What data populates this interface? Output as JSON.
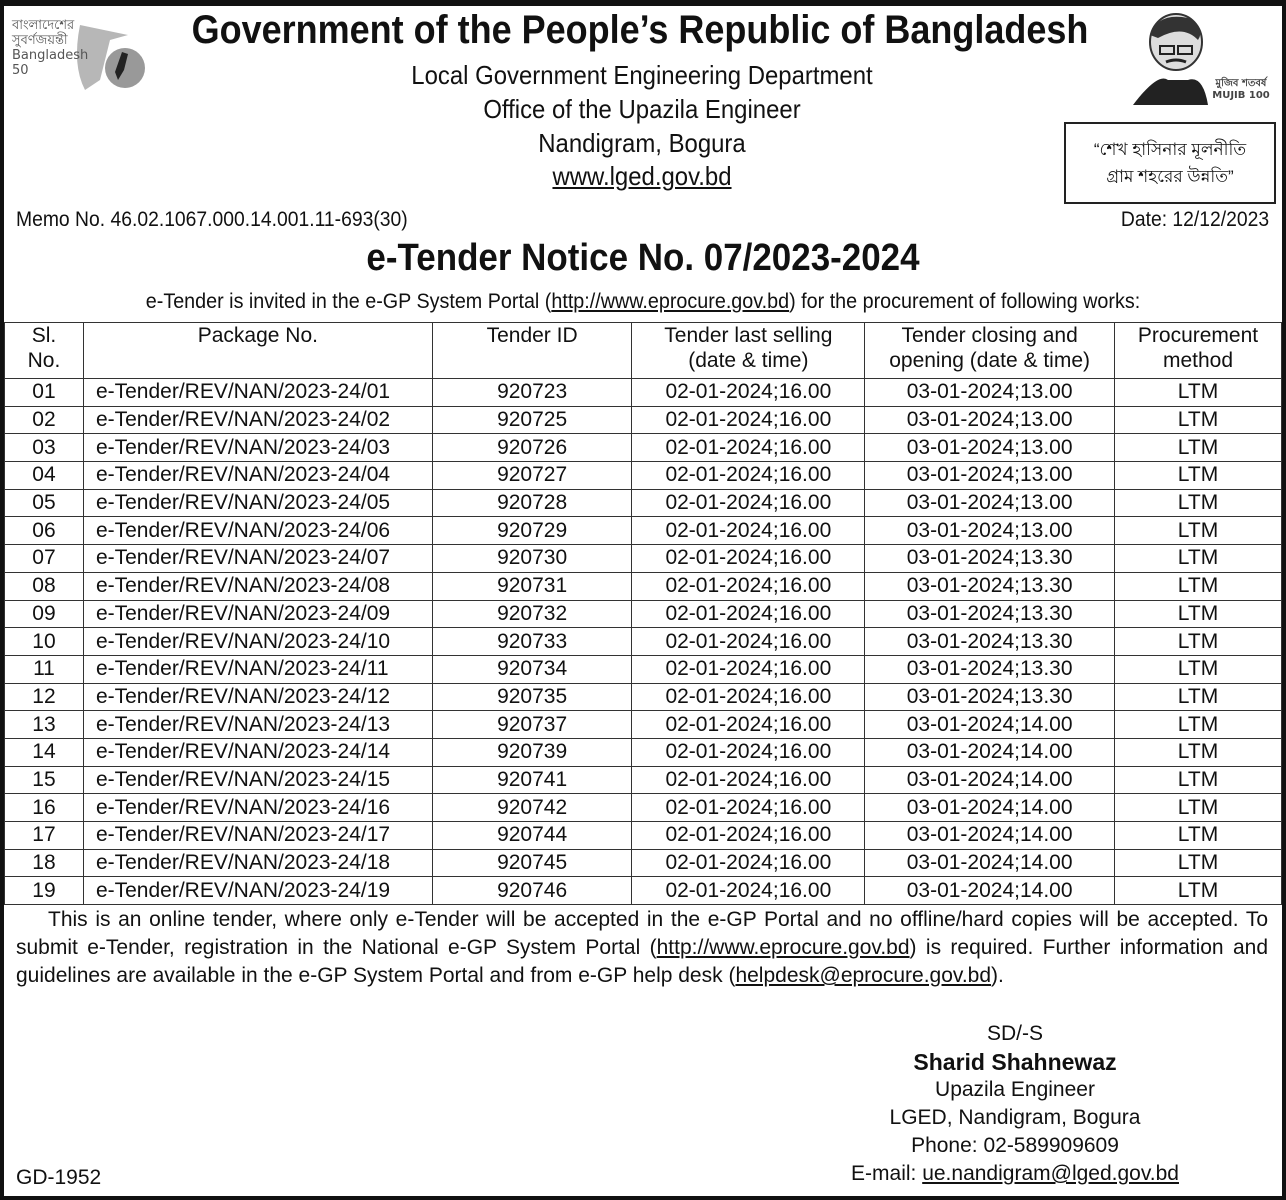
{
  "header": {
    "title": "Government of the People’s Republic of Bangladesh",
    "lines": [
      "Local Government Engineering Department",
      "Office of the Upazila Engineer",
      "Nandigram, Bogura"
    ],
    "website": "www.lged.gov.bd",
    "left_logo_text": "বাংলাদেশের সুবর্ণজয়ন্তী Bangladesh 50",
    "right_logo_text": "মুজিব শতবর্ষ MUJIB 100",
    "slogan_line1": "“শেখ হাসিনার মূলনীতি",
    "slogan_line2": "গ্রাম শহরের উন্নতি”"
  },
  "memo": "Memo No. 46.02.1067.000.14.001.11-693(30)",
  "date": "Date: 12/12/2023",
  "notice_title": "e-Tender Notice No. 07/2023-2024",
  "intro": {
    "before": "e-Tender is invited in the e-GP System Portal (",
    "link": "http://www.eprocure.gov.bd",
    "after": ") for the procurement of following works:"
  },
  "table": {
    "headers": [
      "Sl. No.",
      "Package No.",
      "Tender ID",
      "Tender last selling (date & time)",
      "Tender closing and opening (date & time)",
      "Procurement method"
    ],
    "rows": [
      [
        "01",
        "e-Tender/REV/NAN/2023-24/01",
        "920723",
        "02-01-2024;16.00",
        "03-01-2024;13.00",
        "LTM"
      ],
      [
        "02",
        "e-Tender/REV/NAN/2023-24/02",
        "920725",
        "02-01-2024;16.00",
        "03-01-2024;13.00",
        "LTM"
      ],
      [
        "03",
        "e-Tender/REV/NAN/2023-24/03",
        "920726",
        "02-01-2024;16.00",
        "03-01-2024;13.00",
        "LTM"
      ],
      [
        "04",
        "e-Tender/REV/NAN/2023-24/04",
        "920727",
        "02-01-2024;16.00",
        "03-01-2024;13.00",
        "LTM"
      ],
      [
        "05",
        "e-Tender/REV/NAN/2023-24/05",
        "920728",
        "02-01-2024;16.00",
        "03-01-2024;13.00",
        "LTM"
      ],
      [
        "06",
        "e-Tender/REV/NAN/2023-24/06",
        "920729",
        "02-01-2024;16.00",
        "03-01-2024;13.00",
        "LTM"
      ],
      [
        "07",
        "e-Tender/REV/NAN/2023-24/07",
        "920730",
        "02-01-2024;16.00",
        "03-01-2024;13.30",
        "LTM"
      ],
      [
        "08",
        "e-Tender/REV/NAN/2023-24/08",
        "920731",
        "02-01-2024;16.00",
        "03-01-2024;13.30",
        "LTM"
      ],
      [
        "09",
        "e-Tender/REV/NAN/2023-24/09",
        "920732",
        "02-01-2024;16.00",
        "03-01-2024;13.30",
        "LTM"
      ],
      [
        "10",
        "e-Tender/REV/NAN/2023-24/10",
        "920733",
        "02-01-2024;16.00",
        "03-01-2024;13.30",
        "LTM"
      ],
      [
        "11",
        "e-Tender/REV/NAN/2023-24/11",
        "920734",
        "02-01-2024;16.00",
        "03-01-2024;13.30",
        "LTM"
      ],
      [
        "12",
        "e-Tender/REV/NAN/2023-24/12",
        "920735",
        "02-01-2024;16.00",
        "03-01-2024;13.30",
        "LTM"
      ],
      [
        "13",
        "e-Tender/REV/NAN/2023-24/13",
        "920737",
        "02-01-2024;16.00",
        "03-01-2024;14.00",
        "LTM"
      ],
      [
        "14",
        "e-Tender/REV/NAN/2023-24/14",
        "920739",
        "02-01-2024;16.00",
        "03-01-2024;14.00",
        "LTM"
      ],
      [
        "15",
        "e-Tender/REV/NAN/2023-24/15",
        "920741",
        "02-01-2024;16.00",
        "03-01-2024;14.00",
        "LTM"
      ],
      [
        "16",
        "e-Tender/REV/NAN/2023-24/16",
        "920742",
        "02-01-2024;16.00",
        "03-01-2024;14.00",
        "LTM"
      ],
      [
        "17",
        "e-Tender/REV/NAN/2023-24/17",
        "920744",
        "02-01-2024;16.00",
        "03-01-2024;14.00",
        "LTM"
      ],
      [
        "18",
        "e-Tender/REV/NAN/2023-24/18",
        "920745",
        "02-01-2024;16.00",
        "03-01-2024;14.00",
        "LTM"
      ],
      [
        "19",
        "e-Tender/REV/NAN/2023-24/19",
        "920746",
        "02-01-2024;16.00",
        "03-01-2024;14.00",
        "LTM"
      ]
    ]
  },
  "footer_text": {
    "p1": "This is an online tender, where only e-Tender will be accepted in the e-GP Portal and no offline/hard copies will be accepted. To submit e-Tender, registration in the National e-GP System Portal (",
    "link1": "http://www.eprocure.gov.bd",
    "p2": ") is required. Further information and guidelines are available in the e-GP System Portal and from e-GP help desk (",
    "link2": "helpdesk@eprocure.gov.bd",
    "p3": ")."
  },
  "signature": {
    "sd": "SD/-S",
    "name": "Sharid Shahnewaz",
    "designation": "Upazila Engineer",
    "office": "LGED, Nandigram, Bogura",
    "phone": "Phone: 02-589909609",
    "email_label": "E-mail: ",
    "email": "ue.nandigram@lged.gov.bd"
  },
  "code": "GD-1952"
}
